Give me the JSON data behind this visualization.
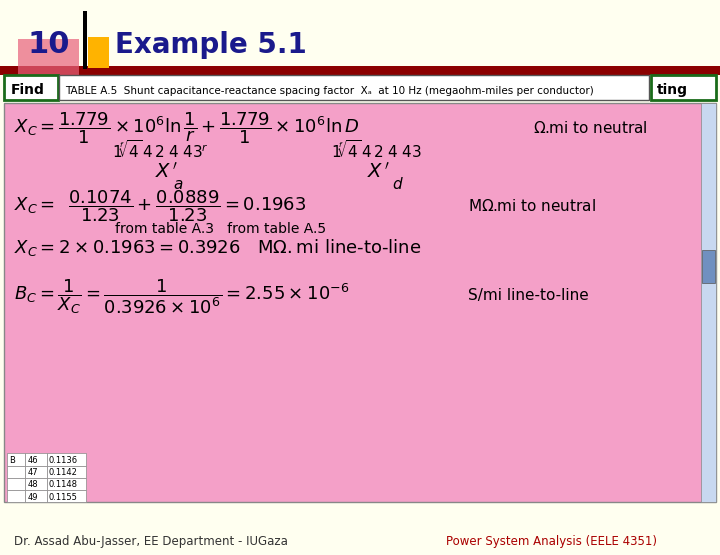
{
  "bg_color": "#FFFFF0",
  "slide_num": "10",
  "title": "Example 5.1",
  "title_color": "#1A1A8C",
  "header_bar_color": "#8B0000",
  "accent_box_color": "#FFD700",
  "find_label": "Find",
  "find_bar_color": "#1A8C1A",
  "table_text": "TABLE A.5  Shunt capacitance-reactance spacing factor  Xₐ  at 10 Hz (megaohm-miles per conductor)",
  "ting_label": "ting",
  "main_bg": "#F4A0C8",
  "bottom_left": "Dr. Assad Abu-Jasser, EE Department - IUGaza",
  "bottom_right": "Power System Analysis (EELE 4351)",
  "footer_color": "#FFFFF0",
  "line1": "X_C = \\\\frac{1.779}{1} \\\\times 10^6 \\\\ln\\\\frac{1}{r} + \\\\frac{1.779}{1} \\\\times 10^6 \\\\ln D \\\\quad \\\\Omega.\\\\mathrm{mi\\ to\\ neutral}",
  "line2": "X_C = 0.1074 + 0.0889 = 0.1963 \\\\quad \\\\mathrm{M}\\\\Omega.\\\\mathrm{mi\\ to\\ neutral}",
  "line3": "X_C = 2 \\\\times 0.1963 = 0.3926 \\\\quad \\\\mathrm{M}\\\\Omega.\\\\mathrm{mi\\ line\\\\text{-}to\\\\text{-}line}",
  "line4": "B_C = \\\\frac{1}{X_C} = \\\\frac{1}{0.3926 \\\\times 10^6} = 2.55 \\\\times 10^{-6} \\\\quad \\\\mathrm{S/mi\\ line\\\\text{-}to\\\\text{-}line}"
}
